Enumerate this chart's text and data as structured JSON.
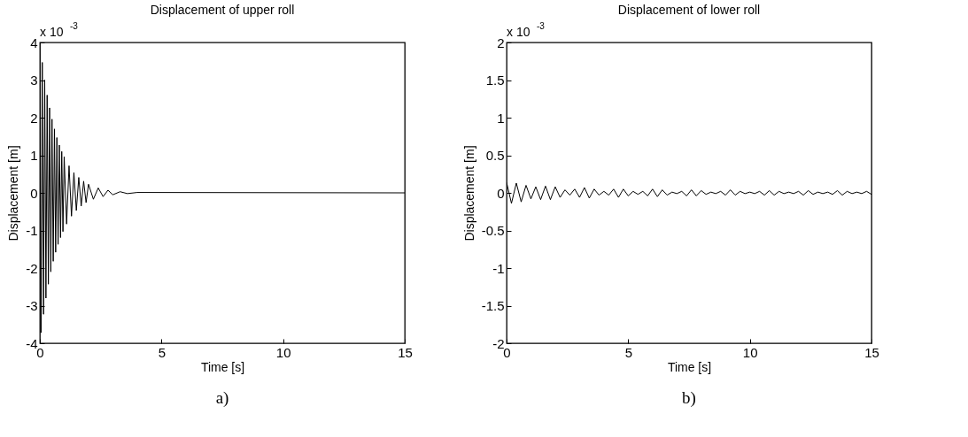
{
  "chart_data": [
    {
      "type": "line",
      "title": "Displacement of upper roll",
      "xlabel": "Time [s]",
      "ylabel": "Displacement [m]",
      "x": [
        0,
        0.05,
        0.1,
        0.15,
        0.2,
        0.25,
        0.3,
        0.35,
        0.4,
        0.45,
        0.5,
        0.55,
        0.6,
        0.65,
        0.7,
        0.75,
        0.8,
        0.85,
        0.9,
        0.95,
        1.0,
        1.1,
        1.2,
        1.3,
        1.4,
        1.5,
        1.6,
        1.7,
        1.8,
        1.9,
        2.0,
        2.2,
        2.4,
        2.6,
        2.8,
        3.0,
        3.3,
        3.6,
        4.0,
        15
      ],
      "series": [
        {
          "color": "#000000",
          "values": [
            4.0,
            -3.72,
            3.47,
            -3.23,
            3.0,
            -2.8,
            2.6,
            -2.43,
            2.26,
            -2.1,
            1.96,
            -1.82,
            1.7,
            -1.58,
            1.47,
            -1.37,
            1.27,
            -1.19,
            1.1,
            -1.03,
            0.96,
            -0.83,
            0.72,
            -0.62,
            0.54,
            -0.47,
            0.41,
            -0.35,
            0.31,
            -0.26,
            0.23,
            -0.17,
            0.13,
            -0.1,
            0.07,
            -0.05,
            0.03,
            -0.02,
            0.01,
            0
          ]
        }
      ],
      "xlim": [
        0,
        15
      ],
      "xticks": [
        0,
        5,
        10,
        15
      ],
      "ylim": [
        -4,
        4
      ],
      "yticks": [
        -4,
        -3,
        -2,
        -1,
        0,
        1,
        2,
        3,
        4
      ],
      "annotations": [
        "x 10$^{-3}$",
        "a)"
      ]
    },
    {
      "type": "line",
      "title": "Displacement of lower roll",
      "xlabel": "Time [s]",
      "ylabel": "Displacement [m]",
      "x": [
        0,
        0.2,
        0.4,
        0.6,
        0.8,
        1.0,
        1.2,
        1.4,
        1.6,
        1.8,
        2.0,
        2.2,
        2.4,
        2.6,
        2.8,
        3.0,
        3.2,
        3.4,
        3.6,
        3.8,
        4.0,
        4.2,
        4.4,
        4.6,
        4.8,
        5.0,
        5.2,
        5.4,
        5.6,
        5.8,
        6.0,
        6.2,
        6.4,
        6.6,
        6.8,
        7.0,
        7.2,
        7.4,
        7.6,
        7.8,
        8.0,
        8.2,
        8.4,
        8.6,
        8.8,
        9.0,
        9.2,
        9.4,
        9.6,
        9.8,
        10.0,
        10.2,
        10.4,
        10.6,
        10.8,
        11.0,
        11.2,
        11.4,
        11.6,
        11.8,
        12.0,
        12.2,
        12.4,
        12.6,
        12.8,
        13.0,
        13.2,
        13.4,
        13.6,
        13.8,
        14.0,
        14.2,
        14.4,
        14.6,
        14.8,
        15.0
      ],
      "series": [
        {
          "color": "#000000",
          "values": [
            0.14,
            -0.14,
            0.13,
            -0.12,
            0.1,
            -0.08,
            0.08,
            -0.09,
            0.09,
            -0.09,
            0.08,
            -0.06,
            0.04,
            -0.03,
            0.05,
            -0.06,
            0.07,
            -0.07,
            0.05,
            -0.03,
            0.02,
            -0.03,
            0.05,
            -0.06,
            0.05,
            -0.04,
            0.02,
            -0.02,
            0.02,
            -0.04,
            0.05,
            -0.05,
            0.04,
            -0.03,
            0.01,
            -0.01,
            0.02,
            -0.04,
            0.04,
            -0.04,
            0.03,
            -0.02,
            0.01,
            -0.01,
            0.02,
            -0.03,
            0.04,
            -0.03,
            0.02,
            -0.01,
            0.01,
            -0.01,
            0.02,
            -0.03,
            0.03,
            -0.03,
            0.02,
            -0.01,
            0.01,
            -0.01,
            0.02,
            -0.03,
            0.03,
            -0.02,
            0.01,
            -0.01,
            0.01,
            -0.02,
            0.03,
            -0.03,
            0.02,
            -0.01,
            0.01,
            -0.01,
            0.02,
            -0.02
          ]
        }
      ],
      "xlim": [
        0,
        15
      ],
      "xticks": [
        0,
        5,
        10,
        15
      ],
      "ylim": [
        -2,
        2
      ],
      "yticks": [
        -2,
        -1.5,
        -1,
        -0.5,
        0,
        0.5,
        1,
        1.5,
        2
      ],
      "annotations": [
        "x 10$^{-3}$",
        "b)"
      ]
    }
  ]
}
